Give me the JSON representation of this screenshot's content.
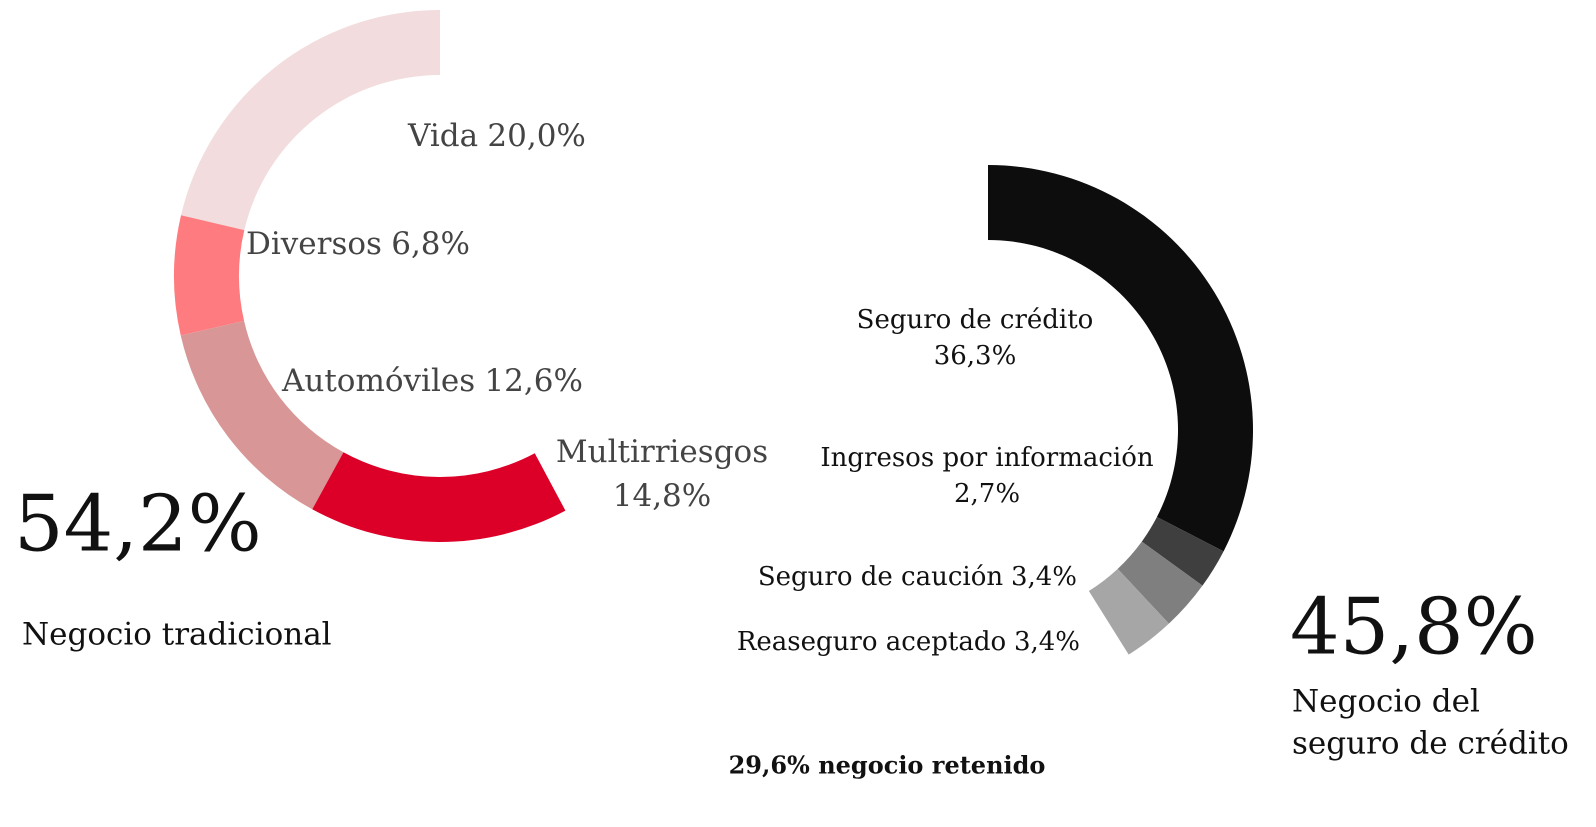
{
  "chart_data": [
    {
      "type": "donut",
      "categories": [
        "Vida",
        "Diversos",
        "Automóviles",
        "Multirriesgos"
      ],
      "values": [
        20.0,
        6.8,
        12.6,
        14.8
      ],
      "value_labels": [
        "20,0%",
        "6,8%",
        "12,6%",
        "14,8%"
      ],
      "colors": [
        "#f2dcdd",
        "#fe7c80",
        "#d89696",
        "#dc0028"
      ],
      "total": "54,2%",
      "subtitle": [
        "Negocio tradicional"
      ]
    },
    {
      "type": "donut",
      "categories": [
        "Seguro de crédito",
        "Ingresos por información",
        "Seguro de caución",
        "Reaseguro aceptado"
      ],
      "values": [
        36.3,
        2.7,
        3.4,
        3.4
      ],
      "value_labels": [
        "36,3%",
        "2,7%",
        "3,4%",
        "3,4%"
      ],
      "colors": [
        "#0d0d0d",
        "#3f3f3f",
        "#7f7f7f",
        "#a6a6a6"
      ],
      "total": "45,8%",
      "subtitle": [
        "Negocio del",
        "seguro de crédito"
      ],
      "annotation": "29,6% negocio retenido"
    }
  ]
}
